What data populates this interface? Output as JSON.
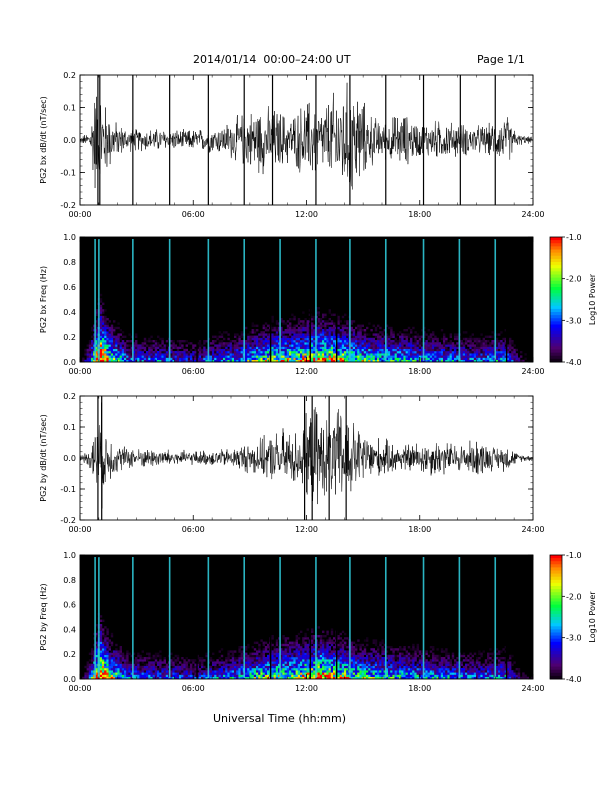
{
  "header": {
    "title": "2014/01/14  00:00–24:00 UT",
    "page": "Page 1/1"
  },
  "xaxis_title": "Universal Time (hh:mm)",
  "chart_data": [
    {
      "type": "line",
      "ylabel": "PG2 bx dB/dt (nT/sec)",
      "xlim": [
        0,
        24
      ],
      "ylim": [
        -0.2,
        0.2
      ],
      "x_ticks": [
        "00:00",
        "06:00",
        "12:00",
        "18:00",
        "24:00"
      ],
      "y_ticks": [
        "0.2",
        "0.1",
        "0.0",
        "-0.1",
        "-0.2"
      ],
      "y_tick_values": [
        0.2,
        0.1,
        0.0,
        -0.1,
        -0.2
      ],
      "envelope_hours": [
        0,
        0.5,
        0.8,
        1.0,
        1.3,
        1.8,
        2.5,
        3.5,
        4.5,
        5.5,
        6.5,
        7.5,
        8.5,
        9.5,
        10.5,
        11.2,
        11.8,
        12.3,
        12.8,
        13.3,
        14.0,
        14.6,
        15.2,
        16.0,
        17.0,
        18.0,
        19.0,
        20.0,
        21.0,
        22.0,
        22.6,
        23.2,
        24.0
      ],
      "envelope_amplitude": [
        0.01,
        0.03,
        0.2,
        0.2,
        0.14,
        0.07,
        0.04,
        0.04,
        0.04,
        0.035,
        0.04,
        0.05,
        0.09,
        0.12,
        0.11,
        0.08,
        0.13,
        0.15,
        0.11,
        0.16,
        0.2,
        0.2,
        0.11,
        0.06,
        0.1,
        0.06,
        0.07,
        0.06,
        0.05,
        0.06,
        0.09,
        0.02,
        0.01
      ],
      "spike_hours": [
        0.95,
        1.05,
        2.8,
        4.75,
        6.8,
        8.7,
        10.2,
        12.5,
        14.3,
        16.2,
        18.2,
        20.15,
        22.0
      ]
    },
    {
      "type": "heatmap",
      "ylabel": "PG2 bx Freq (Hz)",
      "xlim": [
        0,
        24
      ],
      "ylim": [
        0.0,
        1.0
      ],
      "x_ticks": [
        "00:00",
        "06:00",
        "12:00",
        "18:00",
        "24:00"
      ],
      "y_ticks": [
        "1.0",
        "0.8",
        "0.6",
        "0.4",
        "0.2",
        "0.0"
      ],
      "y_tick_values": [
        1.0,
        0.8,
        0.6,
        0.4,
        0.2,
        0.0
      ],
      "colorbar": {
        "label": "Log10 Power",
        "range": [
          -4.0,
          -1.0
        ],
        "ticks": [
          "-1.0",
          "-2.0",
          "-3.0",
          "-4.0"
        ],
        "tick_values": [
          -1.0,
          -2.0,
          -3.0,
          -4.0
        ]
      },
      "line_hours": [
        0.8,
        1.0,
        2.8,
        4.75,
        6.8,
        8.7,
        10.6,
        12.5,
        14.3,
        16.2,
        18.2,
        20.1,
        22.0
      ],
      "dark_line_hours": [
        6.2,
        10.1,
        12.2,
        13.6,
        22.6
      ],
      "activity_hours": [
        0,
        0.5,
        1.0,
        1.5,
        2.5,
        4,
        6,
        8,
        10,
        11.5,
        12.5,
        14,
        15,
        17,
        19,
        21,
        22.5,
        23.2,
        24
      ],
      "activity_level": [
        0.1,
        0.35,
        0.95,
        0.6,
        0.35,
        0.35,
        0.3,
        0.4,
        0.55,
        0.6,
        0.7,
        0.6,
        0.5,
        0.45,
        0.4,
        0.35,
        0.4,
        0.2,
        0.1
      ]
    },
    {
      "type": "line",
      "ylabel": "PG2 by dB/dt (nT/sec)",
      "xlim": [
        0,
        24
      ],
      "ylim": [
        -0.2,
        0.2
      ],
      "x_ticks": [
        "00:00",
        "06:00",
        "12:00",
        "18:00",
        "24:00"
      ],
      "y_ticks": [
        "0.2",
        "0.1",
        "0.0",
        "-0.1",
        "-0.2"
      ],
      "y_tick_values": [
        0.2,
        0.1,
        0.0,
        -0.1,
        -0.2
      ],
      "envelope_hours": [
        0,
        0.5,
        0.8,
        1.1,
        1.4,
        2.0,
        3.0,
        4.0,
        5.0,
        6.0,
        7.0,
        8.0,
        9.0,
        10.0,
        10.8,
        11.5,
        12.0,
        12.5,
        13.0,
        13.5,
        14.0,
        14.6,
        15.2,
        16.0,
        17.0,
        18.0,
        19.0,
        20.0,
        21.0,
        22.0,
        22.6,
        23.2,
        24.0
      ],
      "envelope_amplitude": [
        0.01,
        0.03,
        0.12,
        0.2,
        0.1,
        0.05,
        0.035,
        0.035,
        0.03,
        0.025,
        0.03,
        0.035,
        0.06,
        0.08,
        0.11,
        0.1,
        0.15,
        0.2,
        0.14,
        0.17,
        0.2,
        0.12,
        0.09,
        0.07,
        0.05,
        0.06,
        0.07,
        0.05,
        0.07,
        0.04,
        0.05,
        0.015,
        0.01
      ],
      "spike_hours": [
        0.95,
        1.15,
        11.9,
        12.3,
        13.2,
        14.1
      ]
    },
    {
      "type": "heatmap",
      "ylabel": "PG2 by Freq (Hz)",
      "xlim": [
        0,
        24
      ],
      "ylim": [
        0.0,
        1.0
      ],
      "x_ticks": [
        "00:00",
        "06:00",
        "12:00",
        "18:00",
        "24:00"
      ],
      "y_ticks": [
        "1.0",
        "0.8",
        "0.6",
        "0.4",
        "0.2",
        "0.0"
      ],
      "y_tick_values": [
        1.0,
        0.8,
        0.6,
        0.4,
        0.2,
        0.0
      ],
      "colorbar": {
        "label": "Log10 Power",
        "range": [
          -4.0,
          -1.0
        ],
        "ticks": [
          "-1.0",
          "-2.0",
          "-3.0",
          "-4.0"
        ],
        "tick_values": [
          -1.0,
          -2.0,
          -3.0,
          -4.0
        ]
      },
      "line_hours": [
        0.8,
        1.0,
        2.8,
        4.75,
        6.8,
        8.7,
        10.6,
        12.5,
        14.3,
        16.2,
        18.2,
        20.1,
        22.0
      ],
      "dark_line_hours": [
        6.2,
        10.1,
        12.2,
        13.6,
        22.6
      ],
      "activity_hours": [
        0,
        0.5,
        1.0,
        1.5,
        2.5,
        4,
        6,
        8,
        10,
        11.5,
        12.5,
        14,
        15,
        17,
        19,
        21,
        22.5,
        23.2,
        24
      ],
      "activity_level": [
        0.1,
        0.35,
        0.95,
        0.6,
        0.35,
        0.35,
        0.3,
        0.4,
        0.55,
        0.6,
        0.7,
        0.6,
        0.5,
        0.45,
        0.4,
        0.35,
        0.4,
        0.2,
        0.1
      ]
    }
  ]
}
